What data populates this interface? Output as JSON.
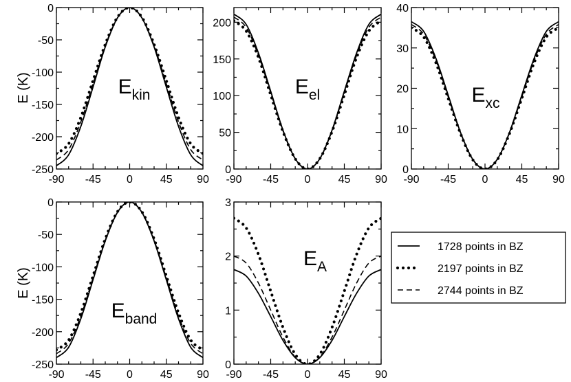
{
  "figure": {
    "y_axis_label": "E (K)",
    "legend_entries": [
      "1728 points in BZ",
      "2197 points in BZ",
      "2744 points in BZ"
    ]
  },
  "chart_data": [
    {
      "type": "line",
      "panel_label": "E",
      "panel_sub": "kin",
      "ylabel": "E (K)",
      "xlim": [
        -90,
        90
      ],
      "ylim": [
        -250,
        0
      ],
      "xticks": [
        -90,
        -45,
        0,
        45,
        90
      ],
      "yticks": [
        0,
        -50,
        -100,
        -150,
        -200,
        -250
      ],
      "x": [
        -90,
        -75,
        -60,
        -45,
        -30,
        -15,
        0,
        15,
        30,
        45,
        60,
        75,
        90
      ],
      "series": [
        {
          "name": "1728 points in BZ",
          "values": [
            -245,
            -228,
            -184,
            -123,
            -61,
            -16,
            0,
            -16,
            -61,
            -123,
            -184,
            -228,
            -245
          ]
        },
        {
          "name": "2197 points in BZ",
          "values": [
            -226,
            -211,
            -170,
            -113,
            -57,
            -15,
            0,
            -15,
            -57,
            -113,
            -170,
            -211,
            -226
          ]
        },
        {
          "name": "2744 points in BZ",
          "values": [
            -236,
            -220,
            -177,
            -118,
            -59,
            -16,
            0,
            -16,
            -59,
            -118,
            -177,
            -220,
            -236
          ]
        }
      ]
    },
    {
      "type": "line",
      "panel_label": "E",
      "panel_sub": "el",
      "ylabel": "",
      "xlim": [
        -90,
        90
      ],
      "ylim": [
        0,
        220
      ],
      "xticks": [
        -90,
        -45,
        0,
        45,
        90
      ],
      "yticks": [
        0,
        50,
        100,
        150,
        200
      ],
      "x": [
        -90,
        -75,
        -60,
        -45,
        -30,
        -15,
        0,
        15,
        30,
        45,
        60,
        75,
        90
      ],
      "series": [
        {
          "name": "1728 points in BZ",
          "values": [
            211,
            197,
            158,
            106,
            53,
            14,
            0,
            14,
            53,
            106,
            158,
            197,
            211
          ]
        },
        {
          "name": "2197 points in BZ",
          "values": [
            202,
            188,
            152,
            101,
            51,
            14,
            0,
            14,
            51,
            101,
            152,
            188,
            202
          ]
        },
        {
          "name": "2744 points in BZ",
          "values": [
            207,
            193,
            155,
            104,
            52,
            14,
            0,
            14,
            52,
            104,
            155,
            193,
            207
          ]
        }
      ]
    },
    {
      "type": "line",
      "panel_label": "E",
      "panel_sub": "xc",
      "ylabel": "",
      "xlim": [
        -90,
        90
      ],
      "ylim": [
        0,
        40
      ],
      "xticks": [
        -90,
        -45,
        0,
        45,
        90
      ],
      "yticks": [
        0,
        10,
        20,
        30,
        40
      ],
      "x": [
        -90,
        -75,
        -60,
        -45,
        -30,
        -15,
        0,
        15,
        30,
        45,
        60,
        75,
        90
      ],
      "series": [
        {
          "name": "1728 points in BZ",
          "values": [
            36.5,
            34.1,
            27.4,
            18.3,
            9.1,
            2.4,
            0,
            2.4,
            9.1,
            18.3,
            27.4,
            34.1,
            36.5
          ]
        },
        {
          "name": "2197 points in BZ",
          "values": [
            35.0,
            32.7,
            26.3,
            17.5,
            8.8,
            2.3,
            0,
            2.3,
            8.8,
            17.5,
            26.3,
            32.7,
            35.0
          ]
        },
        {
          "name": "2744 points in BZ",
          "values": [
            35.8,
            33.4,
            26.9,
            17.9,
            9.0,
            2.4,
            0,
            2.4,
            9.0,
            17.9,
            26.9,
            33.4,
            35.8
          ]
        }
      ]
    },
    {
      "type": "line",
      "panel_label": "E",
      "panel_sub": "band",
      "ylabel": "E (K)",
      "xlim": [
        -90,
        90
      ],
      "ylim": [
        -250,
        0
      ],
      "xticks": [
        -90,
        -45,
        0,
        45,
        90
      ],
      "yticks": [
        0,
        -50,
        -100,
        -150,
        -200,
        -250
      ],
      "x": [
        -90,
        -75,
        -60,
        -45,
        -30,
        -15,
        0,
        15,
        30,
        45,
        60,
        75,
        90
      ],
      "series": [
        {
          "name": "1728 points in BZ",
          "values": [
            -240,
            -224,
            -180,
            -120,
            -60,
            -16,
            0,
            -16,
            -60,
            -120,
            -180,
            -224,
            -240
          ]
        },
        {
          "name": "2197 points in BZ",
          "values": [
            -228,
            -213,
            -171,
            -114,
            -57,
            -15,
            0,
            -15,
            -57,
            -114,
            -171,
            -213,
            -228
          ]
        },
        {
          "name": "2744 points in BZ",
          "values": [
            -234,
            -218,
            -176,
            -117,
            -59,
            -16,
            0,
            -16,
            -59,
            -117,
            -176,
            -218,
            -234
          ]
        }
      ]
    },
    {
      "type": "line",
      "panel_label": "E",
      "panel_sub": "A",
      "ylabel": "",
      "xlim": [
        -90,
        90
      ],
      "ylim": [
        0,
        3
      ],
      "xticks": [
        -90,
        -45,
        0,
        45,
        90
      ],
      "yticks": [
        0,
        1,
        2,
        3
      ],
      "x": [
        -90,
        -75,
        -60,
        -45,
        -30,
        -15,
        0,
        15,
        30,
        45,
        60,
        75,
        90
      ],
      "series": [
        {
          "name": "1728 points in BZ",
          "values": [
            1.75,
            1.63,
            1.31,
            0.88,
            0.44,
            0.12,
            0,
            0.12,
            0.44,
            0.88,
            1.31,
            1.63,
            1.75
          ]
        },
        {
          "name": "2197 points in BZ",
          "values": [
            2.7,
            2.52,
            2.03,
            1.35,
            0.68,
            0.18,
            0,
            0.18,
            0.68,
            1.35,
            2.03,
            2.52,
            2.7
          ]
        },
        {
          "name": "2744 points in BZ",
          "values": [
            2.0,
            1.87,
            1.5,
            1.0,
            0.5,
            0.13,
            0,
            0.13,
            0.5,
            1.0,
            1.5,
            1.87,
            2.0
          ]
        }
      ]
    }
  ]
}
